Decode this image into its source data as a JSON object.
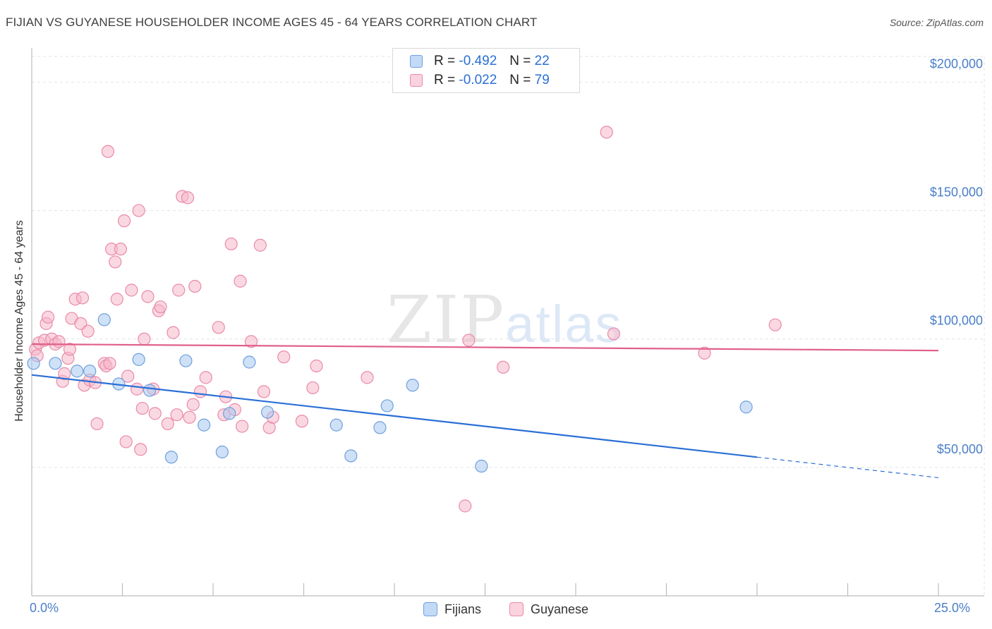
{
  "header": {
    "title": "FIJIAN VS GUYANESE HOUSEHOLDER INCOME AGES 45 - 64 YEARS CORRELATION CHART",
    "source": "Source: ZipAtlas.com"
  },
  "watermark": {
    "zip": "ZIP",
    "atlas": "atlas"
  },
  "legend_top": {
    "rows": [
      {
        "r_label": "R = ",
        "r_value": "-0.492",
        "n_label": "N = ",
        "n_value": "22",
        "color": "#a8c8f0"
      },
      {
        "r_label": "R = ",
        "r_value": "-0.022",
        "n_label": "N = ",
        "n_value": "79",
        "color": "#f5b8cb"
      }
    ]
  },
  "legend_bottom": {
    "items": [
      {
        "label": "Fijians",
        "color": "#a8c8f0"
      },
      {
        "label": "Guyanese",
        "color": "#f5b8cb"
      }
    ]
  },
  "chart_data": {
    "type": "scatter",
    "title": "FIJIAN VS GUYANESE HOUSEHOLDER INCOME AGES 45 - 64 YEARS CORRELATION CHART",
    "xlabel": "",
    "ylabel": "Householder Income Ages 45 - 64 years",
    "xlim": [
      0,
      25
    ],
    "ylim": [
      0,
      210000
    ],
    "x_tick_labels": [
      "0.0%",
      "25.0%"
    ],
    "y_ticks": [
      50000,
      100000,
      150000,
      200000
    ],
    "y_tick_labels": [
      "$50,000",
      "$100,000",
      "$150,000",
      "$200,000"
    ],
    "grid": true,
    "legend_position": "top-center",
    "series": [
      {
        "name": "Fijians",
        "color": "#a8c8f0",
        "stroke": "#6f9fdd",
        "line_color": "#2a6fd6",
        "trend": {
          "x0": 0,
          "y0": 86000,
          "x1": 20,
          "y1": 54000,
          "dash_to": 25,
          "dash_y": 46000
        },
        "points": [
          [
            0.05,
            90500
          ],
          [
            0.65,
            90500
          ],
          [
            1.6,
            87500
          ],
          [
            2.0,
            107500
          ],
          [
            2.4,
            82500
          ],
          [
            2.95,
            92000
          ],
          [
            3.25,
            80000
          ],
          [
            3.85,
            54000
          ],
          [
            4.25,
            91500
          ],
          [
            4.75,
            66500
          ],
          [
            5.25,
            56000
          ],
          [
            5.45,
            71000
          ],
          [
            6.0,
            91000
          ],
          [
            6.5,
            71500
          ],
          [
            8.4,
            66500
          ],
          [
            8.8,
            54500
          ],
          [
            9.6,
            65500
          ],
          [
            9.8,
            74000
          ],
          [
            10.5,
            82000
          ],
          [
            12.4,
            50500
          ],
          [
            19.7,
            73500
          ],
          [
            1.25,
            87500
          ]
        ]
      },
      {
        "name": "Guyanese",
        "color": "#f5b8cb",
        "stroke": "#ea8aa8",
        "line_color": "#e0608a",
        "trend": {
          "x0": 0,
          "y0": 98000,
          "x1": 25,
          "y1": 95500
        },
        "points": [
          [
            0.1,
            96000
          ],
          [
            0.2,
            98500
          ],
          [
            0.35,
            99500
          ],
          [
            0.4,
            106000
          ],
          [
            0.45,
            108500
          ],
          [
            0.55,
            100000
          ],
          [
            0.65,
            98000
          ],
          [
            0.75,
            99000
          ],
          [
            0.85,
            83500
          ],
          [
            0.9,
            86500
          ],
          [
            1.0,
            92500
          ],
          [
            1.05,
            96000
          ],
          [
            1.1,
            108000
          ],
          [
            1.2,
            115500
          ],
          [
            1.35,
            106000
          ],
          [
            1.4,
            116000
          ],
          [
            1.45,
            82000
          ],
          [
            1.55,
            103000
          ],
          [
            1.6,
            84000
          ],
          [
            1.75,
            83000
          ],
          [
            1.8,
            67000
          ],
          [
            2.0,
            90500
          ],
          [
            2.05,
            89500
          ],
          [
            2.1,
            173000
          ],
          [
            2.15,
            90500
          ],
          [
            2.2,
            135000
          ],
          [
            2.3,
            130000
          ],
          [
            2.35,
            115500
          ],
          [
            2.45,
            135000
          ],
          [
            2.55,
            146000
          ],
          [
            2.6,
            60000
          ],
          [
            2.65,
            85500
          ],
          [
            2.75,
            119000
          ],
          [
            2.9,
            80500
          ],
          [
            2.95,
            150000
          ],
          [
            3.0,
            57000
          ],
          [
            3.05,
            73000
          ],
          [
            3.1,
            100000
          ],
          [
            3.2,
            116500
          ],
          [
            3.35,
            80500
          ],
          [
            3.4,
            71000
          ],
          [
            3.5,
            111000
          ],
          [
            3.55,
            112500
          ],
          [
            3.75,
            67000
          ],
          [
            3.9,
            102500
          ],
          [
            4.0,
            70500
          ],
          [
            4.05,
            119000
          ],
          [
            4.15,
            155500
          ],
          [
            4.3,
            155000
          ],
          [
            4.35,
            69500
          ],
          [
            4.45,
            74500
          ],
          [
            4.5,
            120500
          ],
          [
            4.65,
            79500
          ],
          [
            4.8,
            85000
          ],
          [
            5.15,
            104500
          ],
          [
            5.3,
            70500
          ],
          [
            5.35,
            77500
          ],
          [
            5.5,
            137000
          ],
          [
            5.6,
            72500
          ],
          [
            5.75,
            122500
          ],
          [
            5.8,
            66000
          ],
          [
            6.05,
            99000
          ],
          [
            6.3,
            136500
          ],
          [
            6.4,
            79500
          ],
          [
            6.55,
            65500
          ],
          [
            6.65,
            69500
          ],
          [
            6.95,
            93000
          ],
          [
            7.45,
            68000
          ],
          [
            7.75,
            81000
          ],
          [
            7.85,
            89500
          ],
          [
            9.25,
            85000
          ],
          [
            11.95,
            35000
          ],
          [
            12.05,
            99500
          ],
          [
            13.0,
            89000
          ],
          [
            15.85,
            180500
          ],
          [
            16.05,
            102000
          ],
          [
            18.55,
            94500
          ],
          [
            20.5,
            105500
          ],
          [
            0.15,
            93500
          ]
        ]
      }
    ]
  }
}
